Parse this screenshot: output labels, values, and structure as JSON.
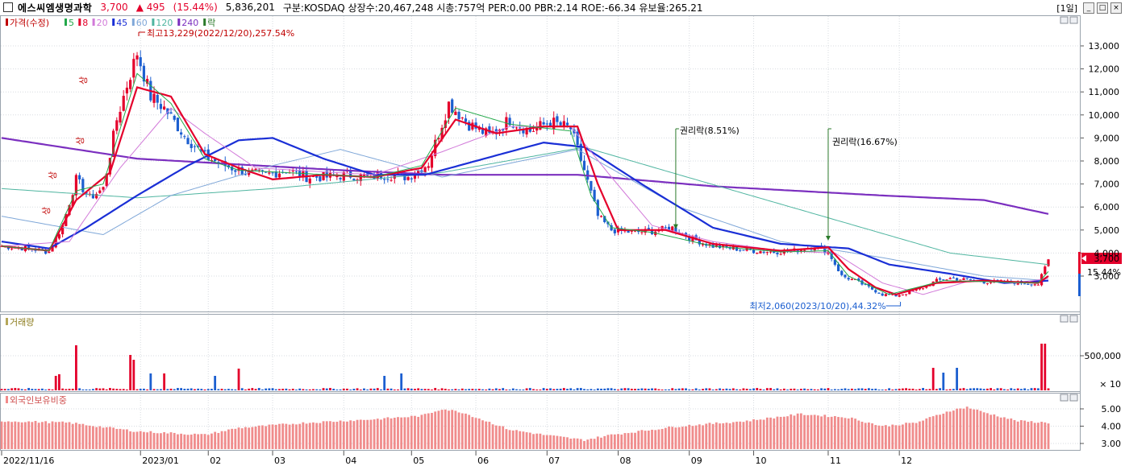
{
  "header": {
    "stock_name": "에스씨엠생명과학",
    "price": "3,700",
    "change": "▲ 495",
    "change_pct": "(15.44%)",
    "volume": "5,836,201",
    "info": "구분:KOSDAQ 상장수:20,467,248 시총:757억 PER:0.00 PBR:2.14 ROE:-66.34 유보율:265.21",
    "period": "[1일]"
  },
  "price_panel": {
    "legend": [
      {
        "text": "가격(수정)",
        "color": "#c00000"
      },
      {
        "text": "5",
        "color": "#23a84a"
      },
      {
        "text": "8",
        "color": "#e4002b"
      },
      {
        "text": "20",
        "color": "#d27ad9"
      },
      {
        "text": "45",
        "color": "#1a2fd6"
      },
      {
        "text": "60",
        "color": "#7fa7d8"
      },
      {
        "text": "120",
        "color": "#4fb5a0"
      },
      {
        "text": "240",
        "color": "#7b2fbf"
      },
      {
        "text": "락",
        "color": "#2a7a2a"
      }
    ],
    "ticks": [
      "13,000",
      "12,000",
      "11,000",
      "10,000",
      "9,000",
      "8,000",
      "7,000",
      "6,000",
      "5,000",
      "4,000",
      "3,000"
    ],
    "current_label": "3,700",
    "current_pct": "15.44%",
    "high_label": "최고13,229(2022/12/20),257.54%",
    "low_label": "최저2,060(2023/10/20),44.32%",
    "rights_1": "권리락(8.51%)",
    "rights_2": "권리락(16.67%)",
    "limit_up": "상"
  },
  "volume_panel": {
    "title": "거래량",
    "tick_500k": "500,000",
    "tick_x10": "× 10"
  },
  "foreign_panel": {
    "title": "외국인보유비중",
    "ticks": [
      "5.00",
      "4.00",
      "3.00"
    ]
  },
  "x_axis": [
    "2022/11/16",
    "2023/01",
    "02",
    "03",
    "04",
    "05",
    "06",
    "07",
    "08",
    "09",
    "10",
    "11",
    "12"
  ],
  "chart_data": {
    "type": "candlestick",
    "title": "에스씨엠생명과학",
    "y_range": [
      2000,
      13700
    ],
    "price_anchors": [
      [
        0,
        4300
      ],
      [
        8,
        4200
      ],
      [
        14,
        4050
      ],
      [
        18,
        5200
      ],
      [
        22,
        7200
      ],
      [
        26,
        6400
      ],
      [
        30,
        6800
      ],
      [
        34,
        9800
      ],
      [
        37,
        11300
      ],
      [
        40,
        12700
      ],
      [
        44,
        10800
      ],
      [
        48,
        10300
      ],
      [
        54,
        9100
      ],
      [
        60,
        8200
      ],
      [
        66,
        7800
      ],
      [
        72,
        7500
      ],
      [
        78,
        7400
      ],
      [
        84,
        7600
      ],
      [
        90,
        7300
      ],
      [
        96,
        7300
      ],
      [
        102,
        7400
      ],
      [
        108,
        7300
      ],
      [
        114,
        7400
      ],
      [
        120,
        7300
      ],
      [
        126,
        7900
      ],
      [
        132,
        10500
      ],
      [
        138,
        9600
      ],
      [
        144,
        9100
      ],
      [
        150,
        9800
      ],
      [
        156,
        9300
      ],
      [
        162,
        9700
      ],
      [
        168,
        9400
      ],
      [
        172,
        7600
      ],
      [
        176,
        5600
      ],
      [
        180,
        5000
      ],
      [
        186,
        4900
      ],
      [
        192,
        4950
      ],
      [
        198,
        5100
      ],
      [
        204,
        4600
      ],
      [
        210,
        4300
      ],
      [
        216,
        4200
      ],
      [
        222,
        4100
      ],
      [
        228,
        4050
      ],
      [
        234,
        4100
      ],
      [
        240,
        4300
      ],
      [
        244,
        4050
      ],
      [
        248,
        3000
      ],
      [
        252,
        2800
      ],
      [
        256,
        2500
      ],
      [
        260,
        2200
      ],
      [
        264,
        2150
      ],
      [
        268,
        2300
      ],
      [
        272,
        2500
      ],
      [
        276,
        2800
      ],
      [
        280,
        2900
      ],
      [
        284,
        2850
      ],
      [
        290,
        2750
      ],
      [
        296,
        2750
      ],
      [
        302,
        2700
      ],
      [
        306,
        2650
      ],
      [
        309,
        3700
      ]
    ],
    "moving_averages": [
      {
        "name": "240",
        "color": "#7b2fbf",
        "width": 2.2,
        "points": [
          [
            0,
            9000
          ],
          [
            40,
            8100
          ],
          [
            100,
            7600
          ],
          [
            130,
            7400
          ],
          [
            170,
            7400
          ],
          [
            210,
            6900
          ],
          [
            260,
            6500
          ],
          [
            290,
            6300
          ],
          [
            309,
            5700
          ]
        ]
      },
      {
        "name": "120",
        "color": "#4fb5a0",
        "width": 1,
        "points": [
          [
            0,
            6800
          ],
          [
            40,
            6400
          ],
          [
            80,
            6800
          ],
          [
            130,
            7500
          ],
          [
            172,
            8600
          ],
          [
            200,
            7400
          ],
          [
            240,
            5700
          ],
          [
            280,
            4000
          ],
          [
            309,
            3500
          ]
        ]
      },
      {
        "name": "60",
        "color": "#7fa7d8",
        "width": 1,
        "points": [
          [
            0,
            5600
          ],
          [
            30,
            4800
          ],
          [
            50,
            6500
          ],
          [
            80,
            7800
          ],
          [
            100,
            8500
          ],
          [
            130,
            7300
          ],
          [
            170,
            8500
          ],
          [
            200,
            6000
          ],
          [
            230,
            4500
          ],
          [
            260,
            3800
          ],
          [
            290,
            3000
          ],
          [
            309,
            2800
          ]
        ]
      },
      {
        "name": "45",
        "color": "#1a2fd6",
        "width": 2.2,
        "points": [
          [
            0,
            4500
          ],
          [
            14,
            4200
          ],
          [
            25,
            5100
          ],
          [
            40,
            6500
          ],
          [
            55,
            7800
          ],
          [
            70,
            8900
          ],
          [
            80,
            9000
          ],
          [
            95,
            8100
          ],
          [
            110,
            7400
          ],
          [
            125,
            7400
          ],
          [
            140,
            8000
          ],
          [
            160,
            8800
          ],
          [
            172,
            8600
          ],
          [
            190,
            6900
          ],
          [
            210,
            5100
          ],
          [
            230,
            4400
          ],
          [
            250,
            4200
          ],
          [
            262,
            3500
          ],
          [
            280,
            3100
          ],
          [
            296,
            2700
          ],
          [
            309,
            2800
          ]
        ]
      },
      {
        "name": "20",
        "color": "#d27ad9",
        "width": 1,
        "points": [
          [
            0,
            4300
          ],
          [
            20,
            4500
          ],
          [
            35,
            7700
          ],
          [
            50,
            10300
          ],
          [
            60,
            9200
          ],
          [
            75,
            7700
          ],
          [
            110,
            7400
          ],
          [
            130,
            8400
          ],
          [
            150,
            9500
          ],
          [
            168,
            9500
          ],
          [
            180,
            7300
          ],
          [
            192,
            5200
          ],
          [
            210,
            4500
          ],
          [
            230,
            4100
          ],
          [
            246,
            4000
          ],
          [
            260,
            2700
          ],
          [
            272,
            2200
          ],
          [
            286,
            2800
          ],
          [
            300,
            2700
          ],
          [
            309,
            2900
          ]
        ]
      },
      {
        "name": "8",
        "color": "#e4002b",
        "width": 2.2,
        "points": [
          [
            0,
            4300
          ],
          [
            14,
            4100
          ],
          [
            22,
            6300
          ],
          [
            32,
            7500
          ],
          [
            40,
            11200
          ],
          [
            50,
            10800
          ],
          [
            60,
            8300
          ],
          [
            70,
            7700
          ],
          [
            80,
            7200
          ],
          [
            95,
            7400
          ],
          [
            110,
            7300
          ],
          [
            124,
            7700
          ],
          [
            134,
            9800
          ],
          [
            146,
            9200
          ],
          [
            160,
            9500
          ],
          [
            170,
            9500
          ],
          [
            176,
            7000
          ],
          [
            182,
            5000
          ],
          [
            196,
            5000
          ],
          [
            210,
            4400
          ],
          [
            230,
            4100
          ],
          [
            244,
            4250
          ],
          [
            250,
            3300
          ],
          [
            258,
            2500
          ],
          [
            264,
            2200
          ],
          [
            276,
            2700
          ],
          [
            290,
            2800
          ],
          [
            306,
            2700
          ],
          [
            309,
            3000
          ]
        ]
      },
      {
        "name": "5",
        "color": "#23a84a",
        "width": 1,
        "points": [
          [
            0,
            4300
          ],
          [
            14,
            4100
          ],
          [
            22,
            6700
          ],
          [
            30,
            7000
          ],
          [
            40,
            11800
          ],
          [
            50,
            10500
          ],
          [
            60,
            8100
          ],
          [
            70,
            7600
          ],
          [
            110,
            7300
          ],
          [
            124,
            7800
          ],
          [
            134,
            10300
          ],
          [
            150,
            9600
          ],
          [
            168,
            9300
          ],
          [
            174,
            6500
          ],
          [
            180,
            5100
          ],
          [
            192,
            4900
          ],
          [
            210,
            4300
          ],
          [
            230,
            4050
          ],
          [
            244,
            4100
          ],
          [
            250,
            3000
          ],
          [
            262,
            2200
          ],
          [
            278,
            2800
          ],
          [
            306,
            2700
          ],
          [
            309,
            3200
          ]
        ]
      }
    ],
    "rights_events": [
      [
        199,
        4900
      ],
      [
        244,
        4400
      ]
    ],
    "high_point": [
      40,
      13229
    ],
    "low_point": [
      262,
      2060
    ],
    "volume_tall": [
      [
        16,
        180000
      ],
      [
        17,
        200000
      ],
      [
        22,
        560000
      ],
      [
        38,
        440000
      ],
      [
        39,
        380000
      ],
      [
        44,
        210000
      ],
      [
        48,
        210000
      ],
      [
        63,
        180000
      ],
      [
        70,
        270000
      ],
      [
        113,
        180000
      ],
      [
        118,
        210000
      ],
      [
        275,
        280000
      ],
      [
        278,
        220000
      ],
      [
        282,
        280000
      ],
      [
        307,
        580000
      ],
      [
        308,
        580000
      ]
    ],
    "foreign_anchors": [
      [
        0,
        4.3
      ],
      [
        20,
        4.2
      ],
      [
        40,
        3.7
      ],
      [
        50,
        3.6
      ],
      [
        60,
        3.5
      ],
      [
        70,
        3.9
      ],
      [
        90,
        4.2
      ],
      [
        110,
        4.4
      ],
      [
        124,
        4.6
      ],
      [
        130,
        5.0
      ],
      [
        136,
        4.8
      ],
      [
        150,
        3.8
      ],
      [
        160,
        3.5
      ],
      [
        172,
        3.2
      ],
      [
        180,
        3.5
      ],
      [
        200,
        4.0
      ],
      [
        220,
        4.3
      ],
      [
        236,
        4.7
      ],
      [
        250,
        4.5
      ],
      [
        260,
        4.0
      ],
      [
        270,
        4.2
      ],
      [
        280,
        4.9
      ],
      [
        285,
        5.1
      ],
      [
        290,
        4.8
      ],
      [
        300,
        4.3
      ],
      [
        309,
        4.2
      ]
    ]
  }
}
